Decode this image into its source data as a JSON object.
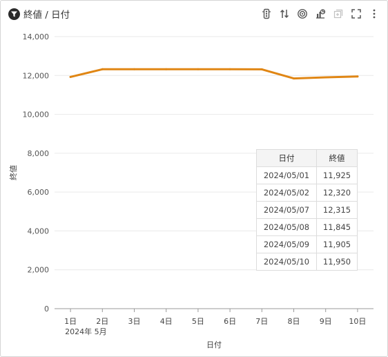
{
  "header": {
    "title": "終値 / 日付",
    "tools": [
      {
        "name": "traffic-light-icon"
      },
      {
        "name": "sort-arrows-icon"
      },
      {
        "name": "target-icon"
      },
      {
        "name": "chart-type-icon"
      },
      {
        "name": "add-panel-icon"
      },
      {
        "name": "fullscreen-icon"
      },
      {
        "name": "more-vertical-icon"
      }
    ]
  },
  "chart_data": {
    "type": "line",
    "title": "終値 / 日付",
    "xlabel": "日付",
    "ylabel": "終値",
    "categories": [
      "1日",
      "2日",
      "3日",
      "4日",
      "5日",
      "6日",
      "7日",
      "8日",
      "9日",
      "10日"
    ],
    "x_sublabel": "2024年 5月",
    "series": [
      {
        "name": "終値",
        "color": "#e08614",
        "values": [
          11925,
          12320,
          12320,
          12320,
          12320,
          12320,
          12315,
          11845,
          11905,
          11950
        ]
      }
    ],
    "ylim": [
      0,
      14000
    ],
    "yticks": [
      "0",
      "2,000",
      "4,000",
      "6,000",
      "8,000",
      "10,000",
      "12,000",
      "14,000"
    ],
    "grid": true,
    "legend": "none"
  },
  "table": {
    "headers": [
      "日付",
      "終値"
    ],
    "rows": [
      [
        "2024/05/01",
        "11,925"
      ],
      [
        "2024/05/02",
        "12,320"
      ],
      [
        "2024/05/07",
        "12,315"
      ],
      [
        "2024/05/08",
        "11,845"
      ],
      [
        "2024/05/09",
        "11,905"
      ],
      [
        "2024/05/10",
        "11,950"
      ]
    ]
  }
}
